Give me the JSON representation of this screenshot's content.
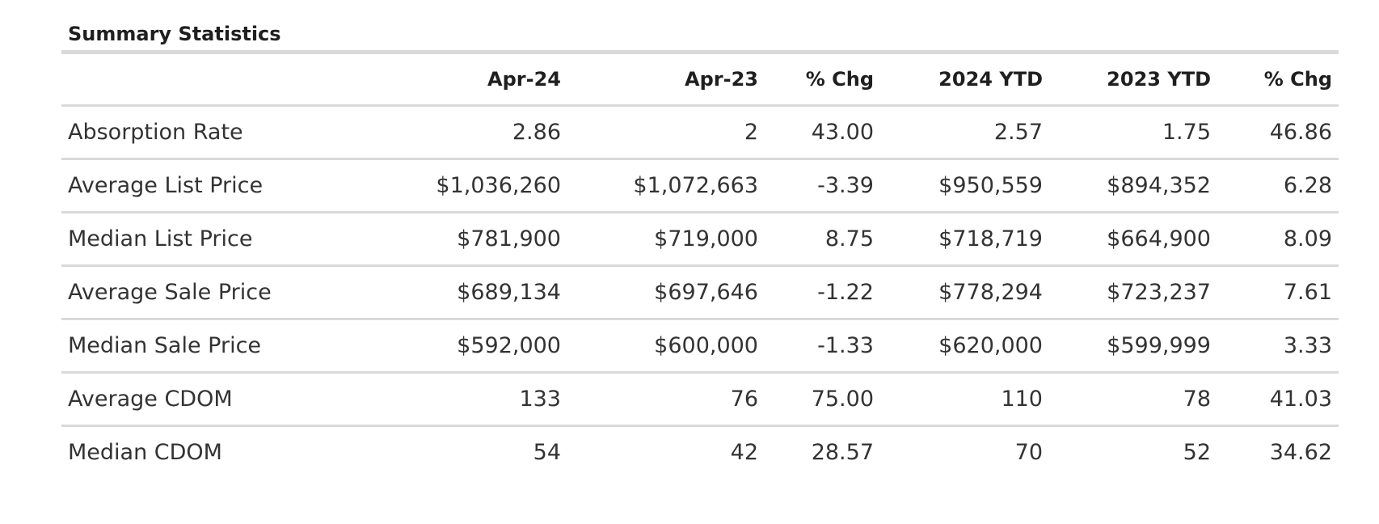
{
  "title": "Summary Statistics",
  "columns": [
    "",
    "Apr-24",
    "Apr-23",
    "% Chg",
    "2024 YTD",
    "2023 YTD",
    "% Chg"
  ],
  "rows": [
    {
      "label": "Absorption Rate",
      "values": [
        "2.86",
        "2",
        "43.00",
        "2.57",
        "1.75",
        "46.86"
      ]
    },
    {
      "label": "Average List Price",
      "values": [
        "$1,036,260",
        "$1,072,663",
        "-3.39",
        "$950,559",
        "$894,352",
        "6.28"
      ]
    },
    {
      "label": "Median List Price",
      "values": [
        "$781,900",
        "$719,000",
        "8.75",
        "$718,719",
        "$664,900",
        "8.09"
      ]
    },
    {
      "label": "Average Sale Price",
      "values": [
        "$689,134",
        "$697,646",
        "-1.22",
        "$778,294",
        "$723,237",
        "7.61"
      ]
    },
    {
      "label": "Median Sale Price",
      "values": [
        "$592,000",
        "$600,000",
        "-1.33",
        "$620,000",
        "$599,999",
        "3.33"
      ]
    },
    {
      "label": "Average CDOM",
      "values": [
        "133",
        "76",
        "75.00",
        "110",
        "78",
        "41.03"
      ]
    },
    {
      "label": "Median CDOM",
      "values": [
        "54",
        "42",
        "28.57",
        "70",
        "52",
        "34.62"
      ]
    }
  ]
}
